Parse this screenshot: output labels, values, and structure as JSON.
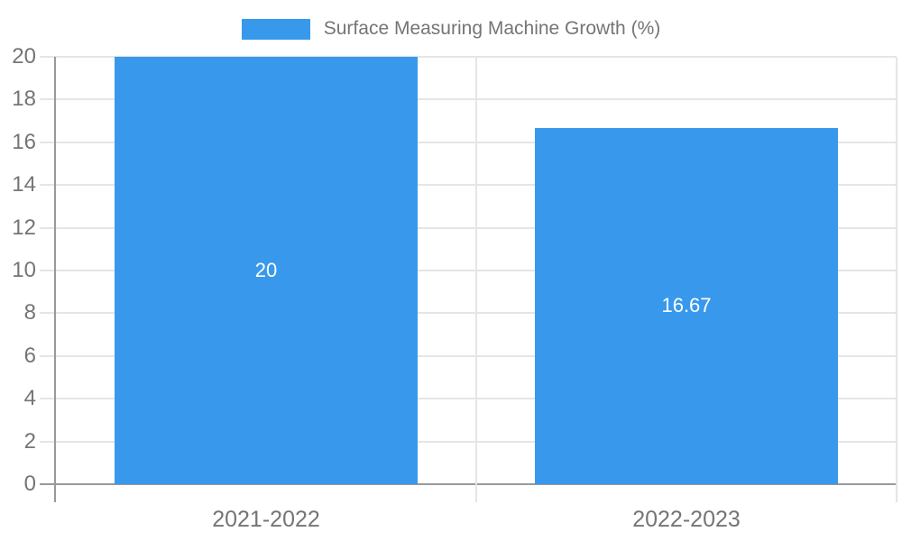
{
  "chart_data": {
    "type": "bar",
    "title": "Surface Measuring Machine Growth (%)",
    "categories": [
      "2021-2022",
      "2022-2023"
    ],
    "series": [
      {
        "name": "Surface Measuring Machine Growth (%)",
        "values": [
          20,
          16.67
        ]
      }
    ],
    "value_labels": [
      "20",
      "16.67"
    ],
    "xlabel": "",
    "ylabel": "",
    "ylim": [
      0,
      20
    ],
    "ytick_step": 2,
    "ytick_labels": [
      "0",
      "2",
      "4",
      "6",
      "8",
      "10",
      "12",
      "14",
      "16",
      "18",
      "20"
    ],
    "grid": true,
    "legend_position": "top",
    "colors": {
      "bar": "#3899EC",
      "grid_line": "#e5e5e5",
      "axis_line": "#999999",
      "axis_text": "#757575",
      "bar_label_text": "#ffffff",
      "background": "#ffffff"
    }
  }
}
